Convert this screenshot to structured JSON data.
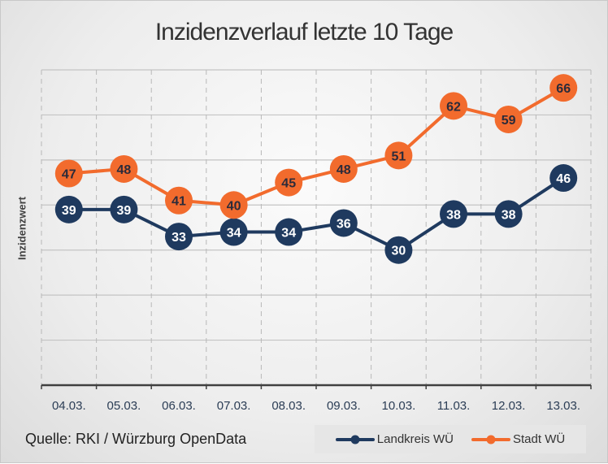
{
  "chart_data": {
    "type": "line",
    "title": "Inzidenzverlauf letzte 10 Tage",
    "ylabel": "Inzidenzwert",
    "xlabel": "",
    "ylim": [
      0,
      70
    ],
    "grid": true,
    "legend_placement": "bottom-right",
    "categories": [
      "04.03.",
      "05.03.",
      "06.03.",
      "07.03.",
      "08.03.",
      "09.03.",
      "10.03.",
      "11.03.",
      "12.03.",
      "13.03."
    ],
    "series": [
      {
        "name": "Landkreis WÜ",
        "color": "#1f3a5f",
        "values": [
          39,
          39,
          33,
          34,
          34,
          36,
          30,
          38,
          38,
          46
        ]
      },
      {
        "name": "Stadt WÜ",
        "color": "#f26b2d",
        "values": [
          47,
          48,
          41,
          40,
          45,
          48,
          51,
          62,
          59,
          66
        ]
      }
    ]
  },
  "source": "Quelle: RKI / Würzburg OpenData"
}
